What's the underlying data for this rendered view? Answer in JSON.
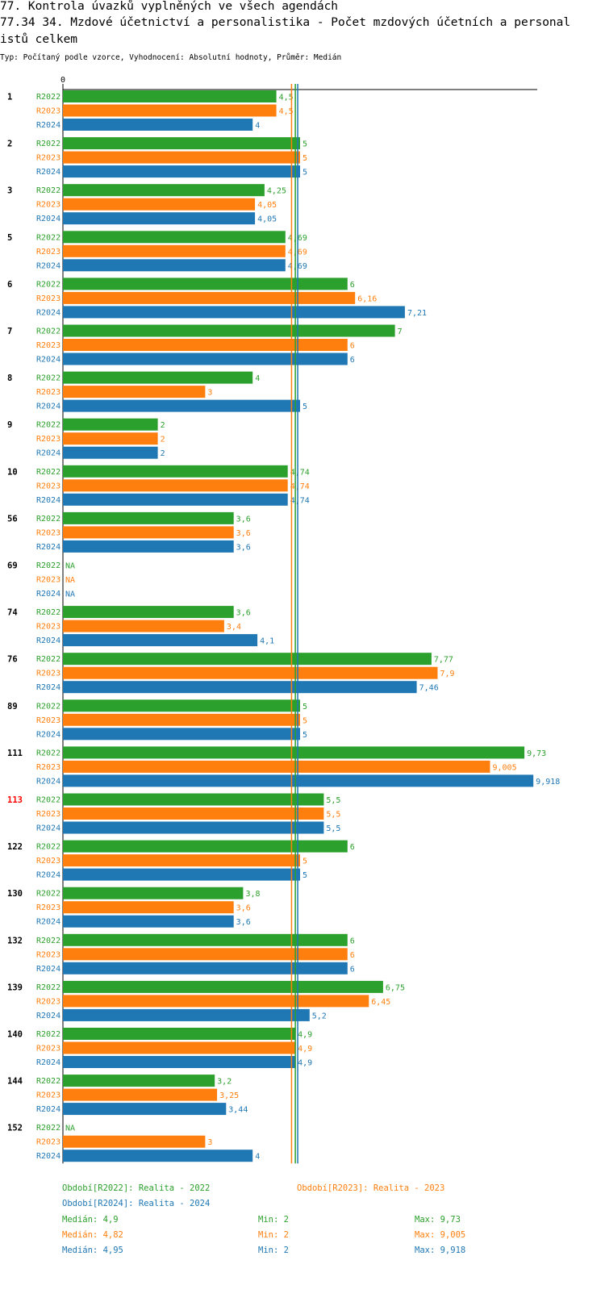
{
  "header": {
    "line1": "77. Kontrola úvazků vyplněných ve všech agendách",
    "line2": "77.34 34. Mzdové účetnictví a personalistika - Počet mzdových účetních a personal",
    "line3": "istů celkem",
    "subtitle": "Typ: Počítaný podle vzorce, Vyhodnocení: Absolutní hodnoty, Průměr: Medián"
  },
  "colors": {
    "R2022": "#2ca02c",
    "R2023": "#ff7f0e",
    "R2024": "#1f77b4",
    "highlight": "#ff0000"
  },
  "chart_data": {
    "type": "bar",
    "orientation": "horizontal",
    "axis_zero_label": "0",
    "xlim": [
      0,
      10
    ],
    "series": [
      {
        "name": "R2022",
        "label": "Období[R2022]: Realita - 2022",
        "median": 4.9,
        "min": 2,
        "max": 9.73,
        "median_label": "Medián: 4,9",
        "min_label": "Min: 2",
        "max_label": "Max: 9,73"
      },
      {
        "name": "R2023",
        "label": "Období[R2023]: Realita - 2023",
        "median": 4.82,
        "min": 2,
        "max": 9.005,
        "median_label": "Medián: 4,82",
        "min_label": "Min: 2",
        "max_label": "Max: 9,005"
      },
      {
        "name": "R2024",
        "label": "Období[R2024]: Realita - 2024",
        "median": 4.95,
        "min": 2,
        "max": 9.918,
        "median_label": "Medián: 4,95",
        "min_label": "Min: 2",
        "max_label": "Max: 9,918"
      }
    ],
    "groups": [
      {
        "id": "1",
        "highlight": false,
        "values": [
          4.5,
          4.5,
          4
        ],
        "labels": [
          "4,5",
          "4,5",
          "4"
        ]
      },
      {
        "id": "2",
        "highlight": false,
        "values": [
          5,
          5,
          5
        ],
        "labels": [
          "5",
          "5",
          "5"
        ]
      },
      {
        "id": "3",
        "highlight": false,
        "values": [
          4.25,
          4.05,
          4.05
        ],
        "labels": [
          "4,25",
          "4,05",
          "4,05"
        ]
      },
      {
        "id": "5",
        "highlight": false,
        "values": [
          4.69,
          4.69,
          4.69
        ],
        "labels": [
          "4,69",
          "4,69",
          "4,69"
        ]
      },
      {
        "id": "6",
        "highlight": false,
        "values": [
          6,
          6.16,
          7.21
        ],
        "labels": [
          "6",
          "6,16",
          "7,21"
        ]
      },
      {
        "id": "7",
        "highlight": false,
        "values": [
          7,
          6,
          6
        ],
        "labels": [
          "7",
          "6",
          "6"
        ]
      },
      {
        "id": "8",
        "highlight": false,
        "values": [
          4,
          3,
          5
        ],
        "labels": [
          "4",
          "3",
          "5"
        ]
      },
      {
        "id": "9",
        "highlight": false,
        "values": [
          2,
          2,
          2
        ],
        "labels": [
          "2",
          "2",
          "2"
        ]
      },
      {
        "id": "10",
        "highlight": false,
        "values": [
          4.74,
          4.74,
          4.74
        ],
        "labels": [
          "4,74",
          "4,74",
          "4,74"
        ]
      },
      {
        "id": "56",
        "highlight": false,
        "values": [
          3.6,
          3.6,
          3.6
        ],
        "labels": [
          "3,6",
          "3,6",
          "3,6"
        ]
      },
      {
        "id": "69",
        "highlight": false,
        "values": [
          null,
          null,
          null
        ],
        "labels": [
          "NA",
          "NA",
          "NA"
        ]
      },
      {
        "id": "74",
        "highlight": false,
        "values": [
          3.6,
          3.4,
          4.1
        ],
        "labels": [
          "3,6",
          "3,4",
          "4,1"
        ]
      },
      {
        "id": "76",
        "highlight": false,
        "values": [
          7.77,
          7.9,
          7.46
        ],
        "labels": [
          "7,77",
          "7,9",
          "7,46"
        ]
      },
      {
        "id": "89",
        "highlight": false,
        "values": [
          5,
          5,
          5
        ],
        "labels": [
          "5",
          "5",
          "5"
        ]
      },
      {
        "id": "111",
        "highlight": false,
        "values": [
          9.73,
          9.005,
          9.918
        ],
        "labels": [
          "9,73",
          "9,005",
          "9,918"
        ]
      },
      {
        "id": "113",
        "highlight": true,
        "values": [
          5.5,
          5.5,
          5.5
        ],
        "labels": [
          "5,5",
          "5,5",
          "5,5"
        ]
      },
      {
        "id": "122",
        "highlight": false,
        "values": [
          6,
          5,
          5
        ],
        "labels": [
          "6",
          "5",
          "5"
        ]
      },
      {
        "id": "130",
        "highlight": false,
        "values": [
          3.8,
          3.6,
          3.6
        ],
        "labels": [
          "3,8",
          "3,6",
          "3,6"
        ]
      },
      {
        "id": "132",
        "highlight": false,
        "values": [
          6,
          6,
          6
        ],
        "labels": [
          "6",
          "6",
          "6"
        ]
      },
      {
        "id": "139",
        "highlight": false,
        "values": [
          6.75,
          6.45,
          5.2
        ],
        "labels": [
          "6,75",
          "6,45",
          "5,2"
        ]
      },
      {
        "id": "140",
        "highlight": false,
        "values": [
          4.9,
          4.9,
          4.9
        ],
        "labels": [
          "4,9",
          "4,9",
          "4,9"
        ]
      },
      {
        "id": "144",
        "highlight": false,
        "values": [
          3.2,
          3.25,
          3.44
        ],
        "labels": [
          "3,2",
          "3,25",
          "3,44"
        ]
      },
      {
        "id": "152",
        "highlight": false,
        "values": [
          null,
          3,
          4
        ],
        "labels": [
          "NA",
          "3",
          "4"
        ]
      }
    ]
  }
}
